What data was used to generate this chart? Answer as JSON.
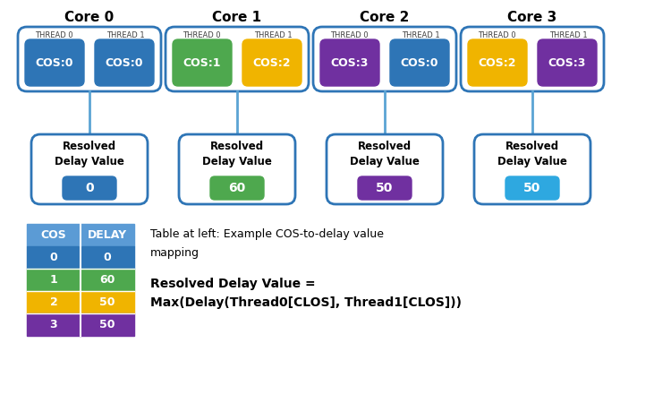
{
  "cores": [
    {
      "label": "Core 0",
      "thread0": {
        "text": "COS:0",
        "color": "#2E75B6"
      },
      "thread1": {
        "text": "COS:0",
        "color": "#2E75B6"
      },
      "resolved_value": "0",
      "resolved_color": "#2E75B6"
    },
    {
      "label": "Core 1",
      "thread0": {
        "text": "COS:1",
        "color": "#4EA84E"
      },
      "thread1": {
        "text": "COS:2",
        "color": "#F0B400"
      },
      "resolved_value": "60",
      "resolved_color": "#4EA84E"
    },
    {
      "label": "Core 2",
      "thread0": {
        "text": "COS:3",
        "color": "#7030A0"
      },
      "thread1": {
        "text": "COS:0",
        "color": "#2E75B6"
      },
      "resolved_value": "50",
      "resolved_color": "#7030A0"
    },
    {
      "label": "Core 3",
      "thread0": {
        "text": "COS:2",
        "color": "#F0B400"
      },
      "thread1": {
        "text": "COS:3",
        "color": "#7030A0"
      },
      "resolved_value": "50",
      "resolved_color": "#2EA8E0"
    }
  ],
  "cos_table": [
    {
      "cos": "0",
      "delay": "0",
      "color": "#2E75B6"
    },
    {
      "cos": "1",
      "delay": "60",
      "color": "#4EA84E"
    },
    {
      "cos": "2",
      "delay": "50",
      "color": "#F0B400"
    },
    {
      "cos": "3",
      "delay": "50",
      "color": "#7030A0"
    }
  ],
  "table_header_color": "#5B9BD5",
  "outer_box_color": "#2E75B6",
  "connector_color": "#5BA4D4",
  "thread_label_color": "#404040",
  "annotation_text1": "Table at left: Example COS-to-delay value\nmapping",
  "annotation_text2": "Resolved Delay Value =\nMax(Delay(Thread0[CLOS], Thread1[CLOS]))",
  "background_color": "#ffffff"
}
